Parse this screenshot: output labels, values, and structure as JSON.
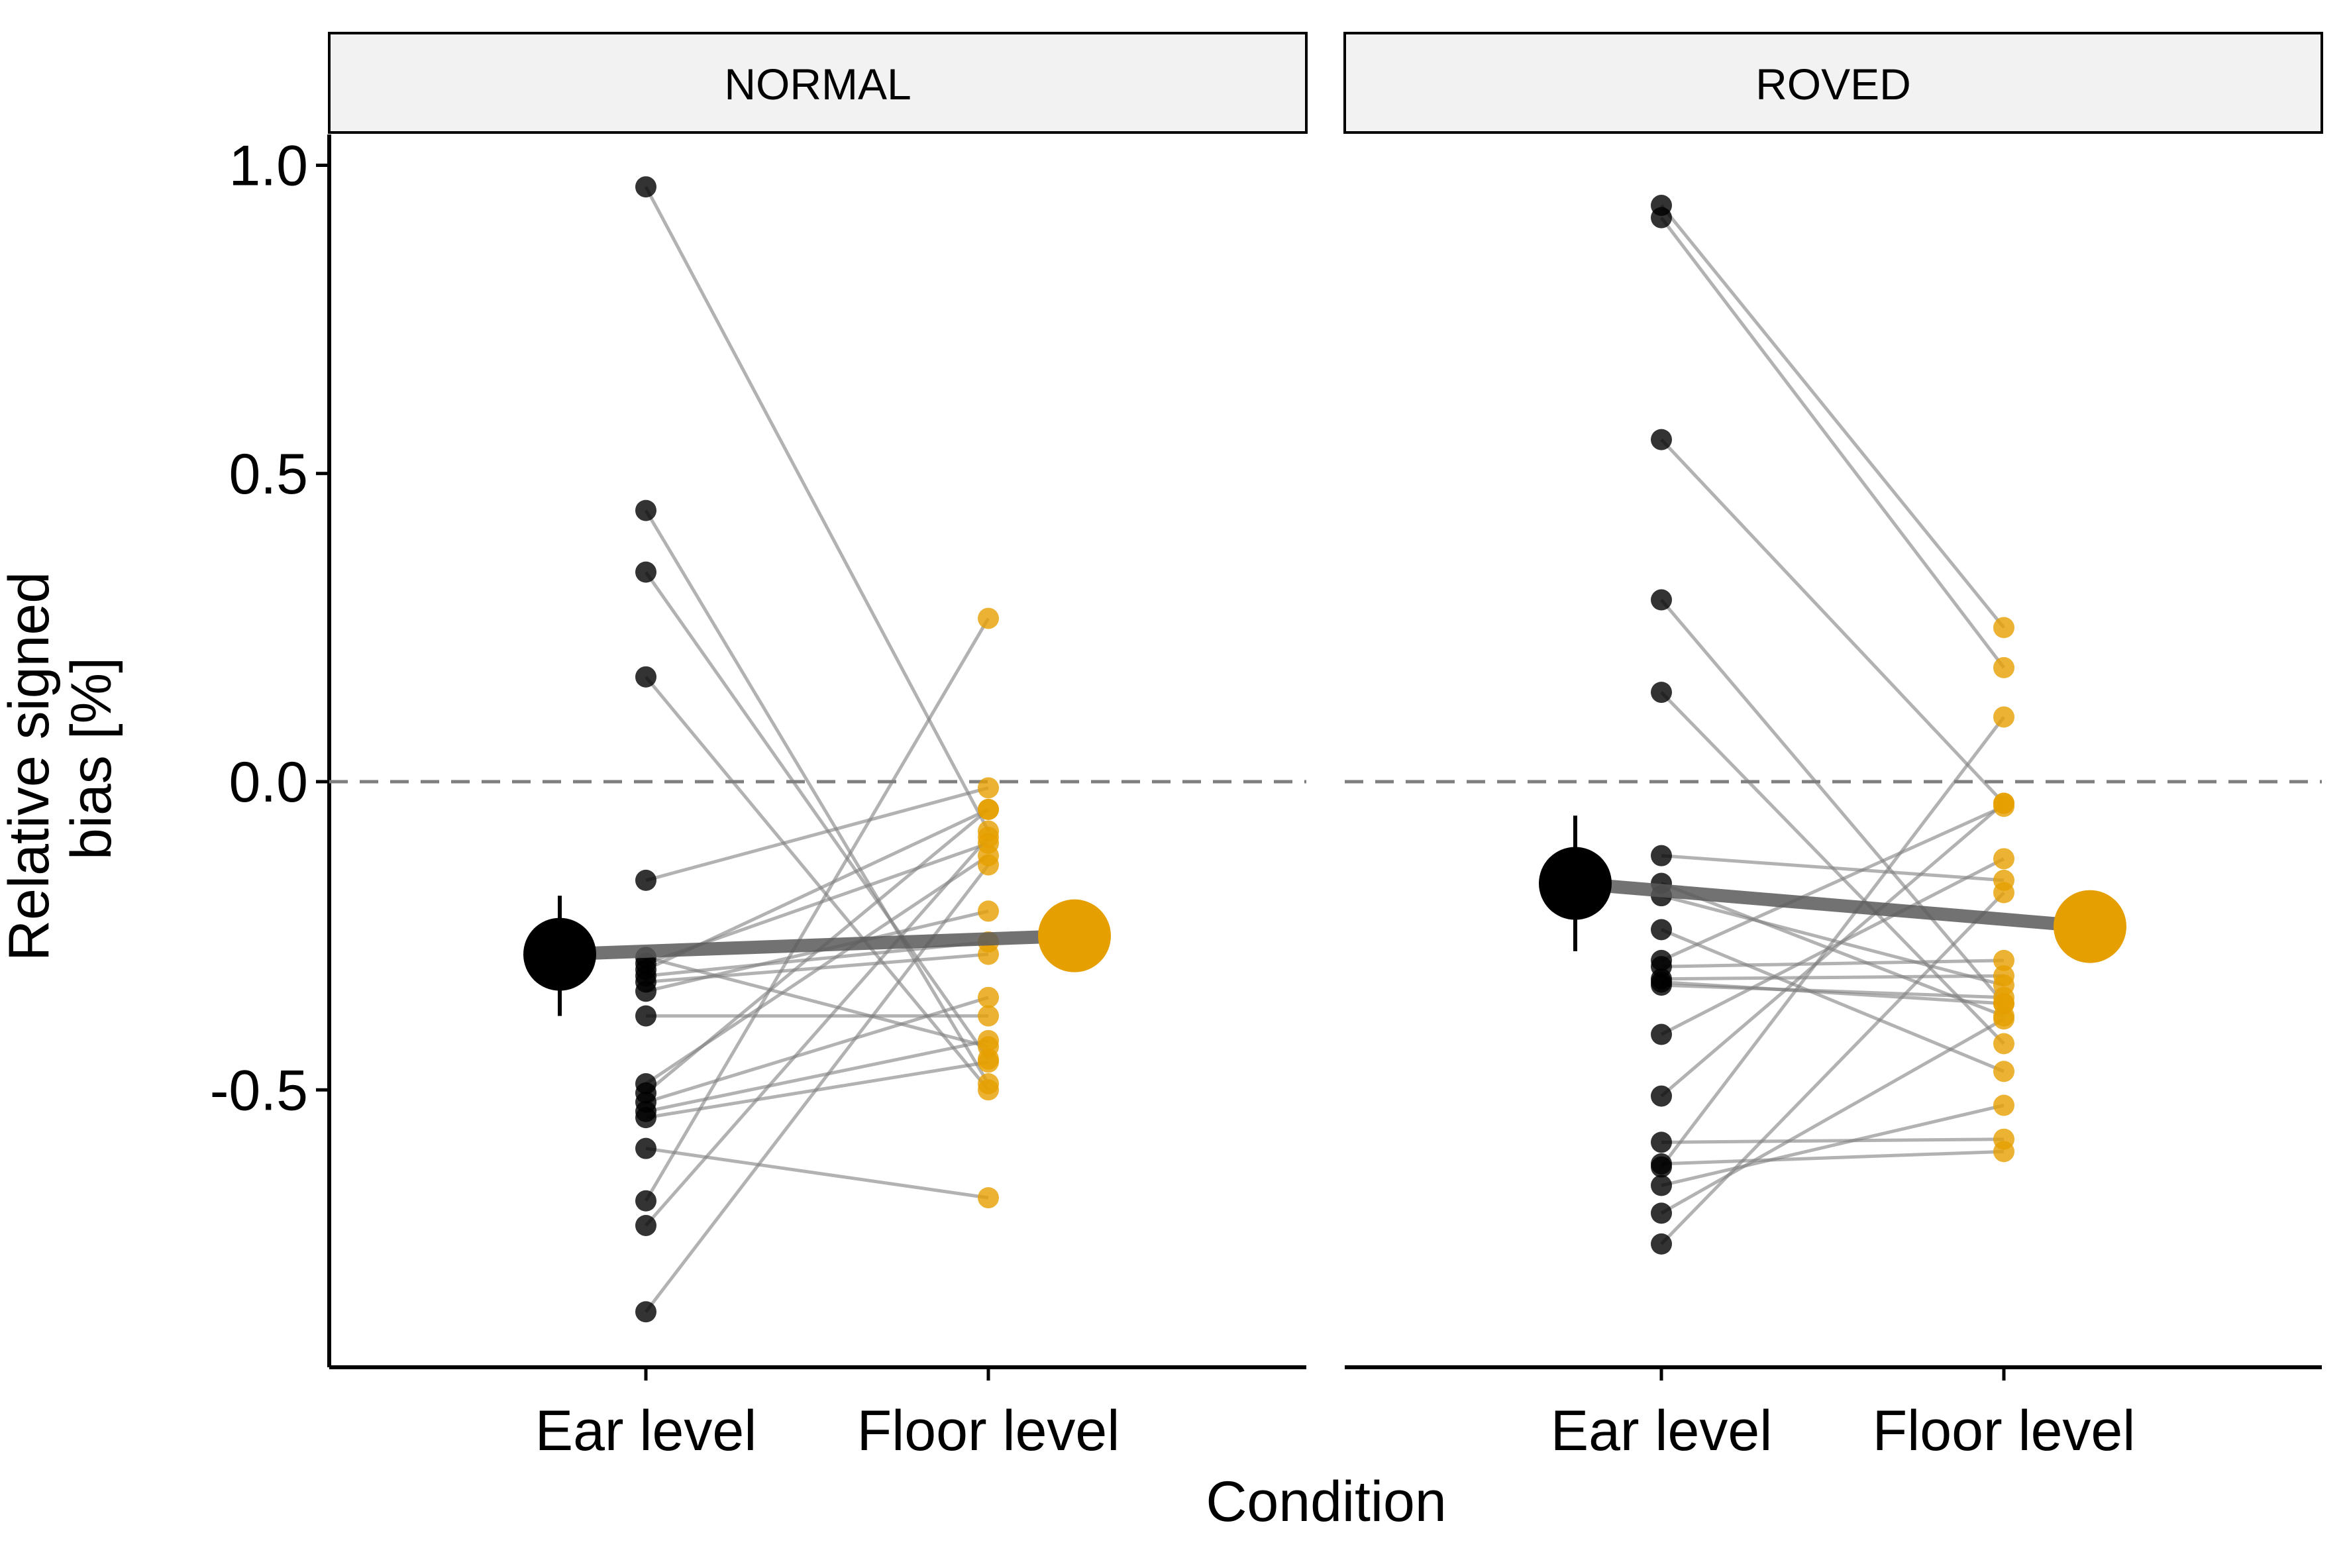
{
  "chart_data": {
    "type": "scatter",
    "xlabel": "Condition",
    "ylabel": [
      "Relative signed",
      "bias [%]"
    ],
    "categories": [
      "Ear level",
      "Floor level"
    ],
    "yticks": [
      1.0,
      0.5,
      0.0,
      -0.5
    ],
    "ytick_labels": [
      "1.0",
      "0.5",
      "0.0",
      "-0.5"
    ],
    "ylim": [
      -0.95,
      1.05
    ],
    "reference_line": {
      "y": 0.0,
      "style": "dashed"
    },
    "colors": {
      "ear_level": "#000000",
      "floor_level": "#E69F00",
      "paired_line": "#7f7f7f",
      "mean_line": "#595959",
      "strip_fill": "#f2f2f2",
      "reference_line": "#7f7f7f"
    },
    "panels": [
      {
        "name": "NORMAL",
        "pairs": [
          [
            0.965,
            -0.08
          ],
          [
            0.44,
            -0.49
          ],
          [
            0.34,
            -0.45
          ],
          [
            0.17,
            -0.5
          ],
          [
            -0.16,
            -0.01
          ],
          [
            -0.285,
            -0.43
          ],
          [
            -0.295,
            -0.1
          ],
          [
            -0.305,
            -0.045
          ],
          [
            -0.315,
            -0.26
          ],
          [
            -0.325,
            -0.28
          ],
          [
            -0.34,
            -0.21
          ],
          [
            -0.38,
            -0.38
          ],
          [
            -0.49,
            -0.12
          ],
          [
            -0.505,
            -0.045
          ],
          [
            -0.52,
            -0.35
          ],
          [
            -0.535,
            -0.42
          ],
          [
            -0.545,
            -0.455
          ],
          [
            -0.595,
            -0.675
          ],
          [
            -0.68,
            0.265
          ],
          [
            -0.72,
            -0.09
          ],
          [
            -0.86,
            -0.135
          ]
        ],
        "mean": {
          "ear_level": -0.28,
          "floor_level": -0.25,
          "ear_level_error": [
            -0.38,
            -0.185
          ]
        }
      },
      {
        "name": "ROVED",
        "pairs": [
          [
            0.935,
            0.25
          ],
          [
            0.915,
            0.185
          ],
          [
            0.555,
            -0.035
          ],
          [
            0.295,
            -0.36
          ],
          [
            0.145,
            -0.425
          ],
          [
            -0.12,
            -0.16
          ],
          [
            -0.165,
            -0.38
          ],
          [
            -0.185,
            -0.33
          ],
          [
            -0.24,
            -0.47
          ],
          [
            -0.29,
            -0.04
          ],
          [
            -0.3,
            -0.29
          ],
          [
            -0.32,
            -0.315
          ],
          [
            -0.325,
            -0.36
          ],
          [
            -0.33,
            -0.35
          ],
          [
            -0.41,
            -0.125
          ],
          [
            -0.51,
            -0.035
          ],
          [
            -0.585,
            -0.58
          ],
          [
            -0.62,
            -0.6
          ],
          [
            -0.625,
            0.105
          ],
          [
            -0.655,
            -0.525
          ],
          [
            -0.7,
            -0.385
          ],
          [
            -0.75,
            -0.18
          ]
        ],
        "mean": {
          "ear_level": -0.165,
          "floor_level": -0.235,
          "ear_level_error": [
            -0.275,
            -0.055
          ]
        }
      }
    ]
  }
}
